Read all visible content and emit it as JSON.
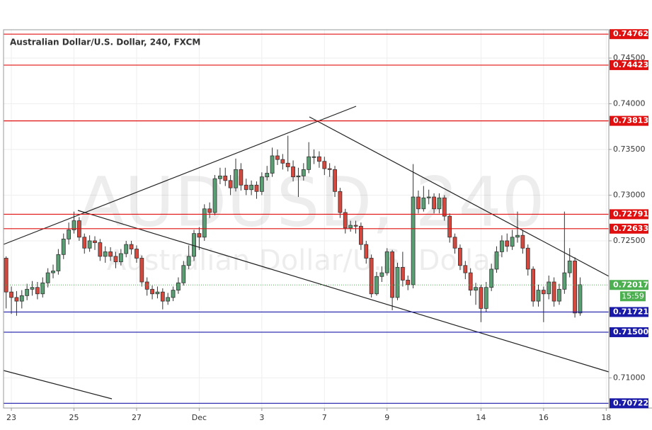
{
  "chart_data": {
    "type": "candlestick",
    "title": "Australian Dollar/U.S. Dollar, 240, FXCM",
    "watermark_symbol": "AUDUSD, 240",
    "watermark_name": "Australian Dollar/U.S. Dollar",
    "categories": [
      null,
      "23",
      null,
      null,
      null,
      null,
      null,
      null,
      null,
      null,
      null,
      null,
      null,
      "25",
      null,
      null,
      null,
      null,
      null,
      null,
      null,
      null,
      null,
      null,
      null,
      "27",
      null,
      null,
      null,
      null,
      null,
      null,
      null,
      null,
      null,
      null,
      null,
      "Dec",
      null,
      null,
      null,
      null,
      null,
      null,
      null,
      null,
      null,
      null,
      null,
      "3",
      null,
      null,
      null,
      null,
      null,
      null,
      null,
      null,
      null,
      null,
      null,
      "7",
      null,
      null,
      null,
      null,
      null,
      null,
      null,
      null,
      null,
      null,
      null,
      "9",
      null,
      null,
      null,
      null,
      null,
      null,
      null,
      null,
      null,
      null,
      null,
      null,
      null,
      null,
      null,
      null,
      null,
      "14",
      null,
      null,
      null,
      null,
      null,
      null,
      null,
      null,
      null,
      null,
      null,
      "16",
      null,
      null,
      null,
      null,
      null,
      null,
      null,
      null,
      null,
      null,
      null,
      "18"
    ],
    "open": [
      0.7231,
      0.7194,
      0.7188,
      0.7184,
      0.719,
      0.7197,
      0.7199,
      0.7192,
      0.7204,
      0.7215,
      0.7217,
      0.7235,
      0.7252,
      0.7262,
      0.7272,
      0.7254,
      0.7242,
      0.725,
      0.7248,
      0.7233,
      0.7238,
      0.7233,
      0.7227,
      0.7236,
      0.7246,
      0.7241,
      0.7231,
      0.7205,
      0.7197,
      0.7192,
      0.7194,
      0.7184,
      0.7188,
      0.7196,
      0.7204,
      0.7223,
      0.7233,
      0.7258,
      0.7254,
      0.7285,
      0.7281,
      0.7318,
      0.7321,
      0.7316,
      0.7308,
      0.7328,
      0.7311,
      0.7306,
      0.7311,
      0.7304,
      0.732,
      0.7324,
      0.7343,
      0.7339,
      0.7335,
      0.7331,
      0.732,
      0.7321,
      0.7328,
      0.7342,
      0.7342,
      0.7337,
      0.7329,
      0.7328,
      0.7304,
      0.7281,
      0.7264,
      0.7267,
      0.7266,
      0.7246,
      0.7231,
      0.7192,
      0.7211,
      0.7215,
      0.7238,
      0.7188,
      0.7221,
      0.7207,
      0.7202,
      0.7298,
      0.7285,
      0.7297,
      0.7298,
      0.7285,
      0.7297,
      0.7277,
      0.7254,
      0.7242,
      0.7223,
      0.7215,
      0.7196,
      0.7199,
      0.7176,
      0.7199,
      0.7219,
      0.7238,
      0.725,
      0.7244,
      0.7254,
      0.7256,
      0.7242,
      0.7219,
      0.7184,
      0.7196,
      0.7192,
      0.7205,
      0.7184,
      0.7197,
      0.7215,
      0.7228,
      0.7171,
      null,
      null,
      null,
      null,
      null
    ],
    "high": [
      0.7233,
      0.72,
      0.7195,
      0.7196,
      0.7203,
      0.7206,
      0.7205,
      0.721,
      0.722,
      0.7224,
      0.7241,
      0.7258,
      0.727,
      0.7282,
      0.7276,
      0.7258,
      0.7256,
      0.7255,
      0.7252,
      0.7244,
      0.7243,
      0.7238,
      0.7241,
      0.725,
      0.725,
      0.7245,
      0.7234,
      0.721,
      0.7201,
      0.72,
      0.7198,
      0.7193,
      0.72,
      0.721,
      0.7228,
      0.7245,
      0.7262,
      0.7265,
      0.729,
      0.7292,
      0.7322,
      0.733,
      0.733,
      0.7322,
      0.734,
      0.7335,
      0.7318,
      0.7316,
      0.7315,
      0.7325,
      0.7332,
      0.7352,
      0.735,
      0.7345,
      0.7365,
      0.7338,
      0.733,
      0.7335,
      0.7358,
      0.735,
      0.7348,
      0.7342,
      0.7335,
      0.7332,
      0.7308,
      0.7285,
      0.7272,
      0.7272,
      0.727,
      0.725,
      0.7235,
      0.7216,
      0.7222,
      0.7242,
      0.724,
      0.7226,
      0.7238,
      0.7212,
      0.7334,
      0.7305,
      0.731,
      0.7306,
      0.7302,
      0.7302,
      0.73,
      0.728,
      0.7258,
      0.7246,
      0.7228,
      0.722,
      0.7204,
      0.7202,
      0.7205,
      0.7225,
      0.7244,
      0.7256,
      0.7258,
      0.7262,
      0.7282,
      0.7262,
      0.7246,
      0.7222,
      0.7202,
      0.72,
      0.7212,
      0.721,
      0.7203,
      0.7282,
      0.7242,
      0.7232,
      0.721,
      null,
      null,
      null,
      null,
      null
    ],
    "low": [
      0.7176,
      0.717,
      0.7168,
      0.7176,
      0.7185,
      0.719,
      0.7186,
      0.7188,
      0.7199,
      0.7209,
      0.7213,
      0.723,
      0.7246,
      0.7258,
      0.725,
      0.7236,
      0.7238,
      0.724,
      0.7228,
      0.7226,
      0.7228,
      0.722,
      0.7223,
      0.7232,
      0.7235,
      0.7226,
      0.72,
      0.719,
      0.7186,
      0.7187,
      0.7175,
      0.718,
      0.7184,
      0.7192,
      0.7201,
      0.7219,
      0.7228,
      0.724,
      0.725,
      0.7275,
      0.7278,
      0.7312,
      0.731,
      0.73,
      0.7304,
      0.7305,
      0.73,
      0.73,
      0.7296,
      0.73,
      0.7316,
      0.732,
      0.7333,
      0.7328,
      0.7326,
      0.7315,
      0.7298,
      0.7316,
      0.7324,
      0.7334,
      0.733,
      0.7322,
      0.732,
      0.7298,
      0.7275,
      0.7258,
      0.726,
      0.7258,
      0.724,
      0.7225,
      0.7188,
      0.719,
      0.7205,
      0.7212,
      0.7174,
      0.7185,
      0.72,
      0.7196,
      0.7198,
      0.728,
      0.7282,
      0.729,
      0.728,
      0.728,
      0.7272,
      0.7248,
      0.7236,
      0.7218,
      0.7208,
      0.719,
      0.718,
      0.7161,
      0.7172,
      0.7195,
      0.7215,
      0.7232,
      0.7238,
      0.724,
      0.7248,
      0.7236,
      0.7212,
      0.7178,
      0.7178,
      0.7161,
      0.7186,
      0.7178,
      0.718,
      0.7192,
      0.721,
      0.7166,
      0.7168,
      null,
      null,
      null,
      null,
      null
    ],
    "close": [
      0.7194,
      0.7188,
      0.7184,
      0.719,
      0.7197,
      0.7199,
      0.7192,
      0.7204,
      0.7215,
      0.7217,
      0.7235,
      0.7252,
      0.7262,
      0.7272,
      0.7254,
      0.7242,
      0.725,
      0.7248,
      0.7233,
      0.7238,
      0.7233,
      0.7227,
      0.7236,
      0.7246,
      0.7241,
      0.7231,
      0.7205,
      0.7197,
      0.7192,
      0.7194,
      0.7184,
      0.7188,
      0.7196,
      0.7204,
      0.7223,
      0.7233,
      0.7258,
      0.7254,
      0.7285,
      0.7281,
      0.7318,
      0.7321,
      0.7316,
      0.7308,
      0.7328,
      0.7311,
      0.7306,
      0.7311,
      0.7304,
      0.732,
      0.7324,
      0.7343,
      0.7339,
      0.7335,
      0.7331,
      0.732,
      0.7321,
      0.7328,
      0.7342,
      0.7342,
      0.7337,
      0.7329,
      0.7328,
      0.7304,
      0.7281,
      0.7264,
      0.7267,
      0.7266,
      0.7246,
      0.7231,
      0.7192,
      0.7211,
      0.7215,
      0.7238,
      0.7188,
      0.7221,
      0.7207,
      0.7202,
      0.7298,
      0.7285,
      0.7297,
      0.7298,
      0.7285,
      0.7297,
      0.7277,
      0.7254,
      0.7242,
      0.7223,
      0.7215,
      0.7196,
      0.7199,
      0.7176,
      0.7199,
      0.7219,
      0.7238,
      0.725,
      0.7244,
      0.7254,
      0.7256,
      0.7242,
      0.7219,
      0.7184,
      0.7196,
      0.7192,
      0.7205,
      0.7184,
      0.7197,
      0.7215,
      0.7228,
      0.7171,
      0.7202,
      null,
      null,
      null,
      null,
      null
    ],
    "up_color": "#5a9f74",
    "down_color": "#d6483d",
    "ylim": [
      0.7067,
      0.7481
    ],
    "yticks": [
      {
        "value": 0.745,
        "label": "0.74500"
      },
      {
        "value": 0.74,
        "label": "0.74000"
      },
      {
        "value": 0.735,
        "label": "0.73500"
      },
      {
        "value": 0.73,
        "label": "0.73000"
      },
      {
        "value": 0.725,
        "label": "0.72500"
      },
      {
        "value": 0.71,
        "label": "0.71000"
      }
    ],
    "grid": true,
    "levels": [
      {
        "value": 0.74762,
        "label": "0.74762",
        "color": "#e01010"
      },
      {
        "value": 0.74423,
        "label": "0.74423",
        "color": "#e01010"
      },
      {
        "value": 0.73813,
        "label": "0.73813",
        "color": "#e01010"
      },
      {
        "value": 0.72791,
        "label": "0.72791",
        "color": "#e01010"
      },
      {
        "value": 0.72633,
        "label": "0.72633",
        "color": "#e01010"
      },
      {
        "value": 0.71721,
        "label": "0.71721",
        "color": "#1a1aa8"
      },
      {
        "value": 0.715,
        "label": "0.71500",
        "color": "#1a1aa8"
      },
      {
        "value": 0.70722,
        "label": "0.70722",
        "color": "#1a1aa8"
      }
    ],
    "last_price": {
      "value": 0.72017,
      "label": "0.72017",
      "countdown": "15:59",
      "color": "#4caf50"
    }
  }
}
